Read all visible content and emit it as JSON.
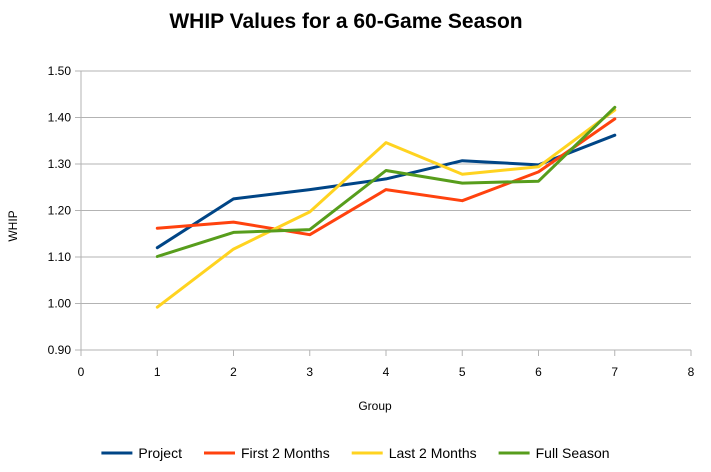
{
  "chart_data": {
    "type": "line",
    "title": "WHIP Values for a 60-Game Season",
    "xlabel": "Group",
    "ylabel": "WHIP",
    "xlim": [
      0,
      8
    ],
    "ylim": [
      0.9,
      1.5
    ],
    "x_ticks": [
      "0",
      "1",
      "2",
      "3",
      "4",
      "5",
      "6",
      "7",
      "8"
    ],
    "y_ticks": [
      "0.90",
      "1.00",
      "1.10",
      "1.20",
      "1.30",
      "1.40",
      "1.50"
    ],
    "grid": "horizontal",
    "legend_position": "bottom",
    "x": [
      1,
      2,
      3,
      4,
      5,
      6,
      7
    ],
    "series": [
      {
        "name": "Project",
        "color": "#004586",
        "values": [
          1.12,
          1.225,
          1.245,
          1.268,
          1.307,
          1.298,
          1.362
        ]
      },
      {
        "name": "First 2 Months",
        "color": "#ff420e",
        "values": [
          1.162,
          1.175,
          1.148,
          1.245,
          1.221,
          1.283,
          1.397
        ]
      },
      {
        "name": "Last 2 Months",
        "color": "#ffd320",
        "values": [
          0.992,
          1.117,
          1.197,
          1.346,
          1.278,
          1.294,
          1.416
        ]
      },
      {
        "name": "Full Season",
        "color": "#579d1c",
        "values": [
          1.101,
          1.153,
          1.159,
          1.286,
          1.259,
          1.263,
          1.422
        ]
      }
    ]
  }
}
